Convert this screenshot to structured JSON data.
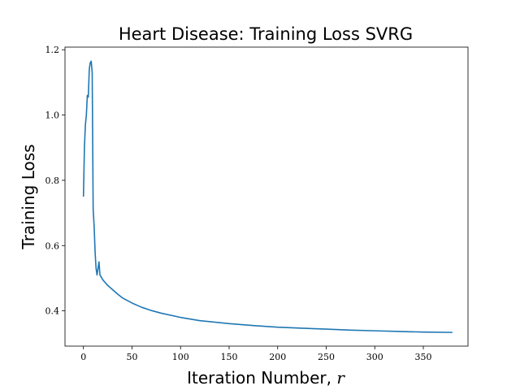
{
  "chart_data": {
    "type": "line",
    "title": "Heart Disease: Training Loss SVRG",
    "xlabel": "Iteration Number, ",
    "xlabel_var": "r",
    "ylabel": "Training Loss",
    "xlim": [
      -19,
      396
    ],
    "ylim": [
      0.292,
      1.208
    ],
    "xticks": [
      0,
      50,
      100,
      150,
      200,
      250,
      300,
      350
    ],
    "yticks": [
      0.4,
      0.6,
      0.8,
      1.0,
      1.2
    ],
    "ytick_labels": [
      "0.4",
      "0.6",
      "0.8",
      "1.0",
      "1.2"
    ],
    "grid": false,
    "series": [
      {
        "color": "#1f77b4",
        "x": [
          0,
          1,
          2,
          3,
          4,
          5,
          6,
          7,
          8,
          9,
          10,
          11,
          12,
          13,
          14,
          15,
          16,
          17,
          18,
          19,
          20,
          22,
          25,
          30,
          35,
          40,
          50,
          60,
          70,
          80,
          100,
          120,
          150,
          175,
          200,
          225,
          250,
          275,
          300,
          325,
          350,
          380
        ],
        "values": [
          0.75,
          0.9,
          0.97,
          1.0,
          1.06,
          1.055,
          1.14,
          1.16,
          1.165,
          1.13,
          0.71,
          0.66,
          0.58,
          0.53,
          0.51,
          0.53,
          0.55,
          0.51,
          0.505,
          0.5,
          0.495,
          0.488,
          0.478,
          0.465,
          0.452,
          0.44,
          0.424,
          0.411,
          0.401,
          0.393,
          0.38,
          0.37,
          0.361,
          0.355,
          0.35,
          0.347,
          0.344,
          0.341,
          0.339,
          0.337,
          0.335,
          0.334
        ]
      }
    ]
  }
}
